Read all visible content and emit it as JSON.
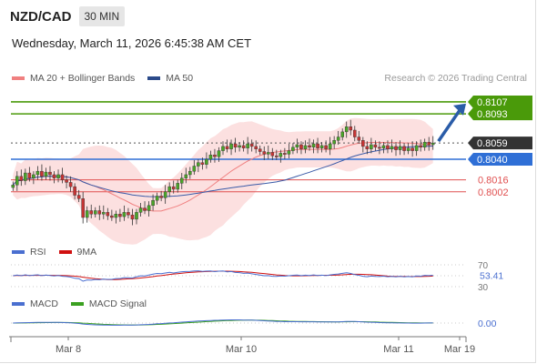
{
  "header": {
    "pair": "NZD/CAD",
    "timeframe": "30 MIN",
    "date": "Wednesday, March 11, 2026 6:45:38 AM CET",
    "credit": "Research © 2026 Trading Central"
  },
  "legend_main": [
    {
      "label": "MA 20 + Bollinger Bands",
      "color": "#f08080"
    },
    {
      "label": "MA 50",
      "color": "#2b4a8a"
    }
  ],
  "legend_rsi": [
    {
      "label": "RSI",
      "color": "#4a6fd0"
    },
    {
      "label": "9MA",
      "color": "#d01010"
    }
  ],
  "legend_macd": [
    {
      "label": "MACD",
      "color": "#4a6fd0"
    },
    {
      "label": "MACD Signal",
      "color": "#3aa020"
    }
  ],
  "colors": {
    "resistance": "#4a9a0a",
    "pivot": "#2f6fd6",
    "support": "#e05050",
    "current": "#333333",
    "arrow": "#2a5ca8",
    "up_candle": "#4aa628",
    "down_candle": "#c83434",
    "band_fill": "#fbd6d6"
  },
  "chart_data": {
    "type": "candlestick",
    "x_ticks": [
      "Mar 8",
      "Mar 10",
      "Mar 11",
      "Mar 19"
    ],
    "ylim": [
      0.7955,
      0.8125
    ],
    "levels": [
      {
        "value": 0.8107,
        "label": "0.8107",
        "kind": "resistance"
      },
      {
        "value": 0.8093,
        "label": "0.8093",
        "kind": "resistance"
      },
      {
        "value": 0.8059,
        "label": "0.8059",
        "kind": "current"
      },
      {
        "value": 0.804,
        "label": "0.8040",
        "kind": "pivot"
      },
      {
        "value": 0.8016,
        "label": "0.8016",
        "kind": "support"
      },
      {
        "value": 0.8002,
        "label": "0.8002",
        "kind": "support"
      }
    ],
    "closes": [
      0.801,
      0.802,
      0.8015,
      0.8024,
      0.8018,
      0.8022,
      0.8026,
      0.802,
      0.8025,
      0.8022,
      0.8018,
      0.8022,
      0.8016,
      0.8013,
      0.8008,
      0.7998,
      0.7994,
      0.7972,
      0.798,
      0.7976,
      0.798,
      0.7976,
      0.7978,
      0.7974,
      0.7972,
      0.7976,
      0.7973,
      0.7978,
      0.7975,
      0.797,
      0.7978,
      0.7983,
      0.798,
      0.7986,
      0.7992,
      0.7997,
      0.7995,
      0.8002,
      0.8008,
      0.8005,
      0.8012,
      0.8018,
      0.8022,
      0.8026,
      0.8032,
      0.8036,
      0.8034,
      0.804,
      0.8045,
      0.8043,
      0.805,
      0.8055,
      0.8052,
      0.8058,
      0.8054,
      0.8056,
      0.8053,
      0.8058,
      0.8055,
      0.8052,
      0.8049,
      0.8046,
      0.8048,
      0.8044,
      0.8043,
      0.8047,
      0.8046,
      0.805,
      0.8054,
      0.8057,
      0.8052,
      0.8056,
      0.8054,
      0.8058,
      0.8053,
      0.8056,
      0.8052,
      0.8058,
      0.8062,
      0.8066,
      0.8072,
      0.8078,
      0.8074,
      0.8066,
      0.8062,
      0.8055,
      0.8052,
      0.8057,
      0.8054,
      0.8053,
      0.8056,
      0.8052,
      0.8055,
      0.8051,
      0.8055,
      0.805,
      0.8053,
      0.805,
      0.8056,
      0.8054,
      0.806,
      0.8057,
      0.8059
    ],
    "rsi": {
      "ticks": [
        "70",
        "30"
      ],
      "last_label": "53.41",
      "ylim": [
        25,
        75
      ]
    },
    "macd": {
      "last_label": "0.00"
    }
  }
}
